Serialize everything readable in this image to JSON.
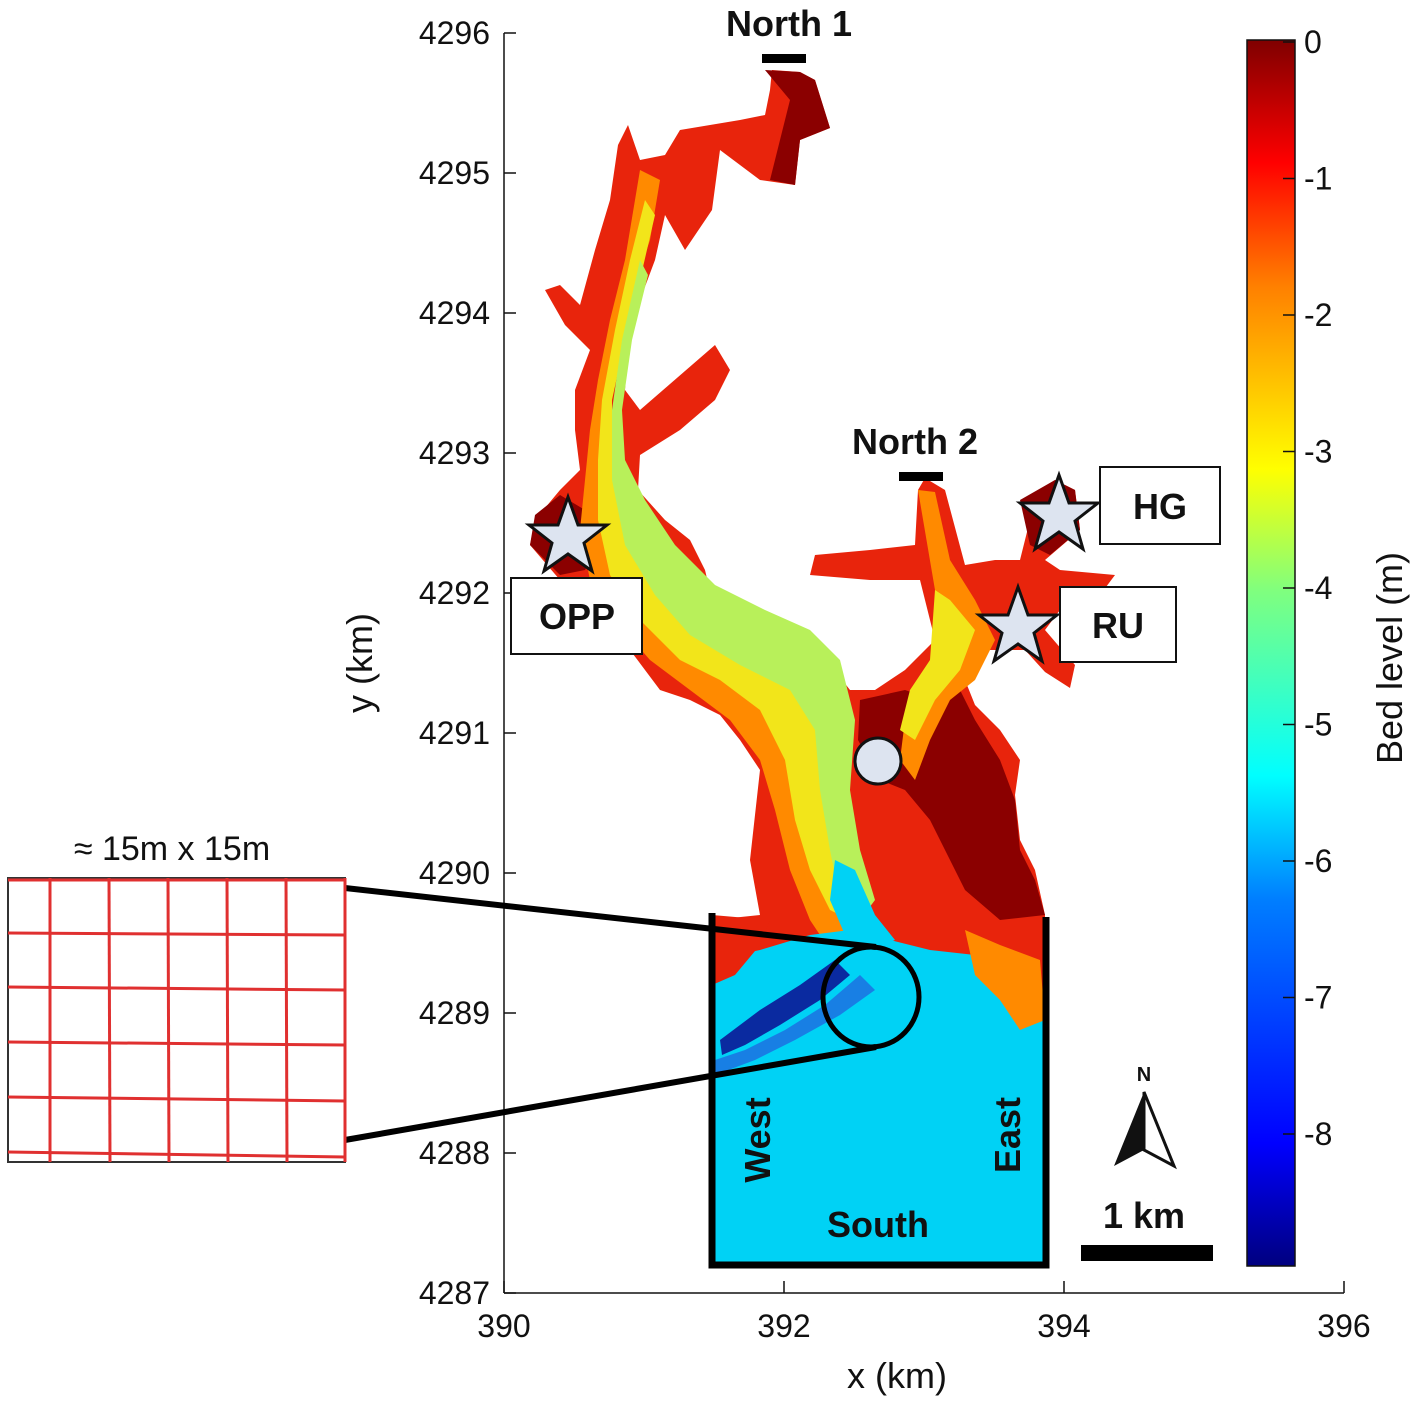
{
  "map": {
    "x_axis": {
      "title": "x (km)",
      "ticks": [
        "390",
        "392",
        "394",
        "396"
      ]
    },
    "y_axis": {
      "title": "y (km)",
      "ticks": [
        "4296",
        "4295",
        "4294",
        "4293",
        "4292",
        "4291",
        "4290",
        "4289",
        "4288",
        "4287"
      ]
    },
    "boundaries": {
      "north1": "North 1",
      "north2": "North 2",
      "west": "West",
      "east": "East",
      "south": "South"
    },
    "stations": {
      "opp": "OPP",
      "hg": "HG",
      "ru": "RU"
    },
    "scale_bar": "1 km",
    "north_arrow": "N",
    "inset_label": "≈ 15m x 15m"
  },
  "colorbar": {
    "title": "Bed level (m)",
    "ticks": [
      "0",
      "-1",
      "-2",
      "-3",
      "-4",
      "-5",
      "-6",
      "-7",
      "-8"
    ],
    "colormap": [
      "#00007f",
      "#0000ff",
      "#007fff",
      "#00ffff",
      "#7fff7f",
      "#ffff00",
      "#ff7f00",
      "#ff0000",
      "#7f0000"
    ]
  },
  "colors": {
    "shallow_dark_red": "#8b0000",
    "red": "#e8240c",
    "orange": "#ff8a00",
    "yellow": "#f2e51a",
    "green_yellow": "#b8f05a",
    "cyan": "#00d2f5",
    "deep_blue": "#0a2aa0",
    "marker_fill": "#dde4f0",
    "inset_grid": "#e03030"
  }
}
